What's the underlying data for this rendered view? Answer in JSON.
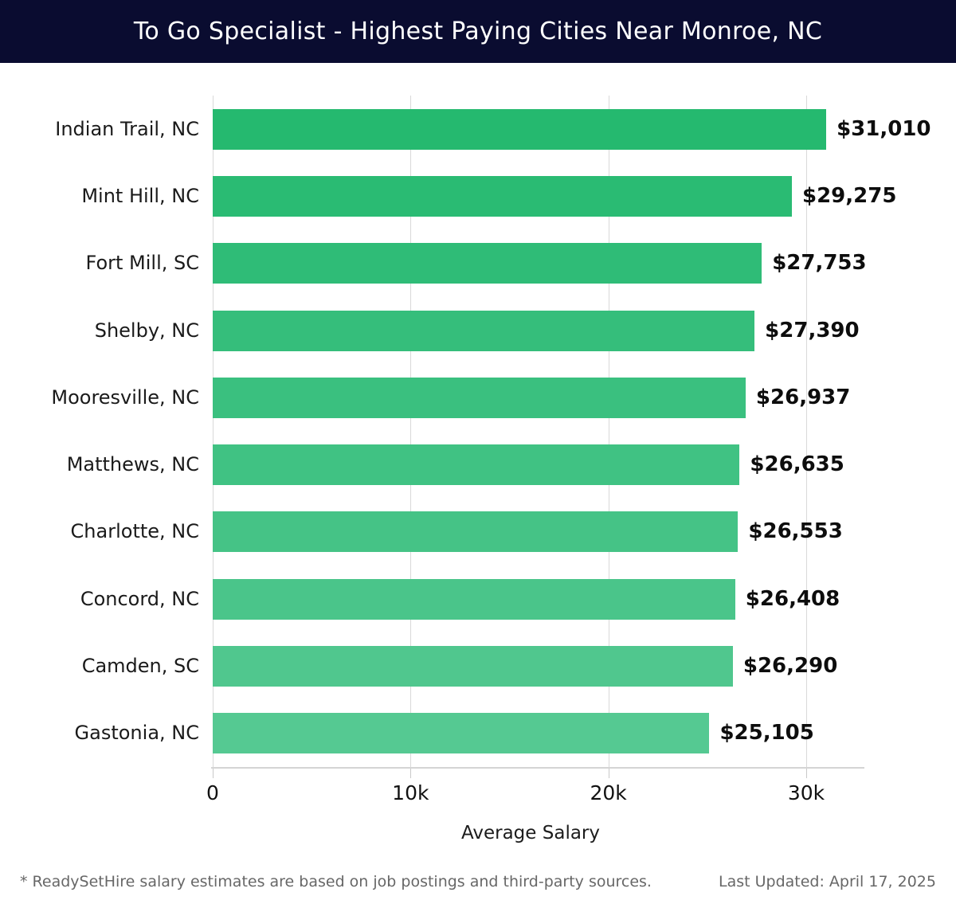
{
  "header": {
    "title": "To Go Specialist - Highest Paying Cities Near Monroe, NC",
    "background_color": "#0a0c30",
    "text_color": "#ffffff"
  },
  "chart_data": {
    "type": "bar",
    "orientation": "horizontal",
    "title": "To Go Specialist - Highest Paying Cities Near Monroe, NC",
    "categories": [
      "Indian Trail, NC",
      "Mint Hill, NC",
      "Fort Mill, SC",
      "Shelby, NC",
      "Mooresville, NC",
      "Matthews, NC",
      "Charlotte, NC",
      "Concord, NC",
      "Camden, SC",
      "Gastonia, NC"
    ],
    "values": [
      31010,
      29275,
      27753,
      27390,
      26937,
      26635,
      26553,
      26408,
      26290,
      25105
    ],
    "value_labels": [
      "$31,010",
      "$29,275",
      "$27,753",
      "$27,390",
      "$26,937",
      "$26,635",
      "$26,553",
      "$26,408",
      "$26,290",
      "$25,105"
    ],
    "bar_colors": [
      "#25b96f",
      "#2abb73",
      "#2fbc77",
      "#35be7b",
      "#3ac07f",
      "#40c283",
      "#45c386",
      "#4ac58a",
      "#50c78e",
      "#55c992"
    ],
    "xlabel": "Average Salary",
    "xticks": [
      0,
      10000,
      20000,
      30000
    ],
    "xtick_labels": [
      "0",
      "10k",
      "20k",
      "30k"
    ],
    "xlim": [
      0,
      32930
    ],
    "grid": "vertical",
    "legend": "none"
  },
  "footer": {
    "note": "* ReadySetHire salary estimates are based on job postings and third-party sources.",
    "last_updated": "Last Updated: April 17, 2025"
  }
}
